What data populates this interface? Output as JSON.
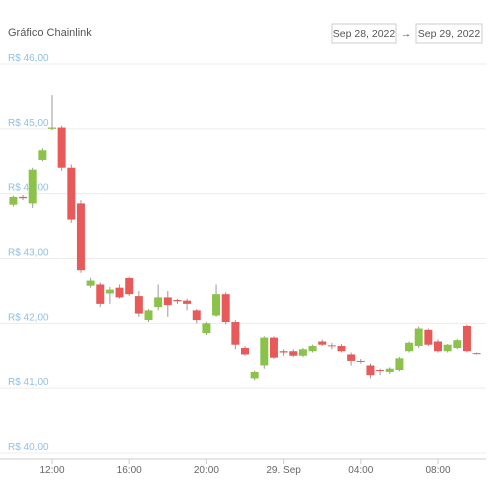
{
  "header": {
    "title": "Gráfico Chainlink",
    "date_from": "Sep 28, 2022",
    "arrow": "→",
    "date_to": "Sep 29, 2022"
  },
  "chart_data": {
    "type": "candlestick",
    "categories": [
      null,
      null,
      null,
      null,
      "12:00",
      null,
      null,
      null,
      null,
      null,
      null,
      null,
      "16:00",
      null,
      null,
      null,
      null,
      null,
      null,
      null,
      "20:00",
      null,
      null,
      null,
      null,
      null,
      null,
      null,
      "29. Sep",
      null,
      null,
      null,
      null,
      null,
      null,
      null,
      "04:00",
      null,
      null,
      null,
      null,
      null,
      null,
      null,
      "08:00",
      null,
      null,
      null,
      null
    ],
    "open": [
      43.83,
      43.95,
      43.85,
      44.52,
      45.0,
      45.02,
      44.4,
      43.85,
      42.58,
      42.6,
      42.46,
      42.55,
      42.7,
      42.42,
      42.05,
      42.25,
      42.4,
      42.36,
      42.35,
      42.2,
      41.85,
      42.12,
      42.45,
      42.02,
      41.62,
      41.15,
      41.35,
      41.78,
      41.57,
      41.57,
      41.5,
      41.57,
      41.72,
      41.66,
      41.65,
      41.52,
      41.42,
      41.35,
      41.28,
      41.25,
      41.28,
      41.57,
      41.65,
      41.9,
      41.72,
      41.57,
      41.62,
      41.96,
      41.54
    ],
    "high": [
      43.97,
      43.98,
      44.4,
      44.7,
      45.52,
      45.05,
      44.45,
      43.9,
      42.7,
      42.63,
      42.56,
      42.6,
      42.72,
      42.5,
      42.22,
      42.6,
      42.5,
      42.38,
      42.38,
      42.22,
      42.02,
      42.6,
      42.48,
      42.05,
      41.65,
      41.27,
      41.8,
      41.8,
      41.6,
      41.6,
      41.62,
      41.67,
      41.75,
      41.7,
      41.68,
      41.55,
      41.45,
      41.38,
      41.3,
      41.32,
      41.48,
      41.72,
      41.95,
      41.92,
      41.75,
      41.68,
      41.76,
      41.98,
      41.55
    ],
    "low": [
      43.8,
      43.9,
      43.78,
      44.5,
      44.98,
      44.35,
      43.55,
      42.78,
      42.55,
      42.25,
      42.3,
      42.38,
      42.42,
      42.1,
      42.02,
      42.2,
      42.1,
      42.3,
      42.2,
      42.0,
      41.82,
      42.1,
      41.98,
      41.6,
      41.5,
      41.12,
      41.3,
      41.45,
      41.5,
      41.48,
      41.48,
      41.55,
      41.65,
      41.6,
      41.55,
      41.35,
      41.38,
      41.15,
      41.2,
      41.22,
      41.26,
      41.55,
      41.62,
      41.65,
      41.55,
      41.55,
      41.6,
      41.55,
      41.52
    ],
    "close": [
      43.95,
      43.93,
      44.37,
      44.67,
      45.02,
      44.4,
      43.6,
      42.82,
      42.66,
      42.3,
      42.52,
      42.4,
      42.45,
      42.15,
      42.2,
      42.4,
      42.28,
      42.34,
      42.3,
      42.05,
      42.0,
      42.45,
      42.02,
      41.67,
      41.52,
      41.25,
      41.78,
      41.47,
      41.55,
      41.5,
      41.6,
      41.65,
      41.67,
      41.65,
      41.57,
      41.42,
      41.41,
      41.2,
      41.27,
      41.3,
      41.46,
      41.7,
      41.92,
      41.67,
      41.57,
      41.67,
      41.74,
      41.57,
      41.53
    ],
    "up_color": "#8bc34a",
    "down_color": "#e85a5a",
    "ylim": [
      40,
      46
    ],
    "yticks": [
      {
        "value": 40,
        "label": "R$ 40,00"
      },
      {
        "value": 41,
        "label": "R$ 41,00"
      },
      {
        "value": 42,
        "label": "R$ 42,00"
      },
      {
        "value": 43,
        "label": "R$ 43,00"
      },
      {
        "value": 44,
        "label": "R$ 44,00"
      },
      {
        "value": 45,
        "label": "R$ 45,00"
      },
      {
        "value": 46,
        "label": "R$ 46,00"
      }
    ],
    "grid": true
  }
}
